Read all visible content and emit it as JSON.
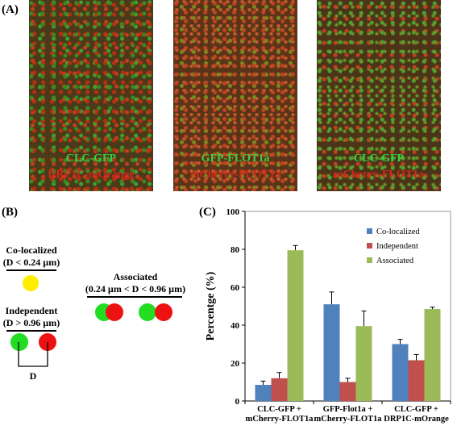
{
  "panels": {
    "A": "(A)",
    "B": "(B)",
    "C": "(C)"
  },
  "micrographs": [
    {
      "line1": "CLC-GFP",
      "line2": "DRP1C-mOrange"
    },
    {
      "line1": "GFP-FLOT1a",
      "line2": "mCherry-FLOT1a"
    },
    {
      "line1": "CLC-GFP",
      "line2": "mCherry-FLOT1a"
    }
  ],
  "diagram": {
    "colocalized_title": "Co-localized",
    "colocalized_cond": "(D < 0.24 µm)",
    "independent_title": "Independent",
    "independent_cond": "(D > 0.96 µm)",
    "associated_title": "Associated",
    "associated_cond": "(0.24 µm < D < 0.96 µm)",
    "distance_label": "D",
    "colors": {
      "green": "#22dd22",
      "red": "#ee1111",
      "yellow": "#ffee00"
    }
  },
  "chart_data": {
    "type": "bar",
    "ylabel": "Percentge (%)",
    "xlabel": "",
    "ylim": [
      0,
      100
    ],
    "yticks": [
      0,
      20,
      40,
      60,
      80,
      100
    ],
    "categories": [
      [
        "CLC-GFP +",
        "mCherry-FLOT1a"
      ],
      [
        "GFP-Flot1a +",
        "mCherry-FLOT1a"
      ],
      [
        "CLC-GFP +",
        "DRP1C-mOrange"
      ]
    ],
    "series": [
      {
        "name": "Co-localized",
        "color": "#4f81bd",
        "values": [
          8.5,
          51,
          30
        ],
        "errors": [
          2,
          6.5,
          2.5
        ]
      },
      {
        "name": "Independent",
        "color": "#c0504d",
        "values": [
          12,
          10,
          21.5
        ],
        "errors": [
          3,
          2,
          3
        ]
      },
      {
        "name": "Associated",
        "color": "#9bbb59",
        "values": [
          79.5,
          39.5,
          48.5
        ],
        "errors": [
          2.5,
          8,
          1
        ]
      }
    ],
    "legend_position": "top-right"
  }
}
